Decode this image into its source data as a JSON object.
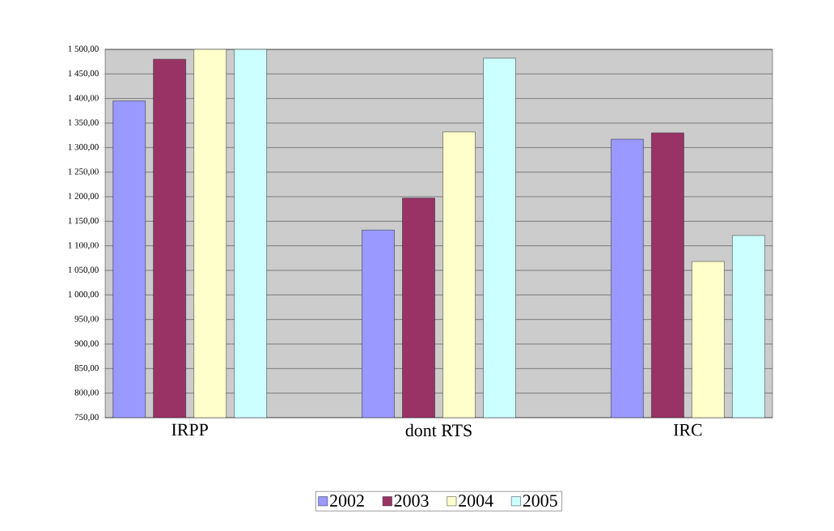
{
  "chart_data": {
    "type": "bar",
    "categories": [
      "IRPP",
      "dont RTS",
      "IRC"
    ],
    "series": [
      {
        "name": "2002",
        "color": "#9999ff",
        "values": [
          1395,
          1132,
          1317
        ]
      },
      {
        "name": "2003",
        "color": "#993366",
        "values": [
          1480,
          1197,
          1330
        ]
      },
      {
        "name": "2004",
        "color": "#ffffcc",
        "values": [
          1500,
          1332,
          1068
        ]
      },
      {
        "name": "2005",
        "color": "#ccffff",
        "values": [
          1500,
          1482,
          1121
        ]
      }
    ],
    "ylim": [
      750,
      1500
    ],
    "yticks": [
      {
        "value": 750,
        "label": "750,00"
      },
      {
        "value": 800,
        "label": "800,00"
      },
      {
        "value": 850,
        "label": "850,00"
      },
      {
        "value": 900,
        "label": "900,00"
      },
      {
        "value": 950,
        "label": "950,00"
      },
      {
        "value": 1000,
        "label": "1 000,00"
      },
      {
        "value": 1050,
        "label": "1 050,00"
      },
      {
        "value": 1100,
        "label": "1 100,00"
      },
      {
        "value": 1150,
        "label": "1 150,00"
      },
      {
        "value": 1200,
        "label": "1 200,00"
      },
      {
        "value": 1250,
        "label": "1 250,00"
      },
      {
        "value": 1300,
        "label": "1 300,00"
      },
      {
        "value": 1350,
        "label": "1 350,00"
      },
      {
        "value": 1400,
        "label": "1 400,00"
      },
      {
        "value": 1450,
        "label": "1 450,00"
      },
      {
        "value": 1500,
        "label": "1 500,00"
      }
    ],
    "grid": "y",
    "legend": "bottom"
  }
}
